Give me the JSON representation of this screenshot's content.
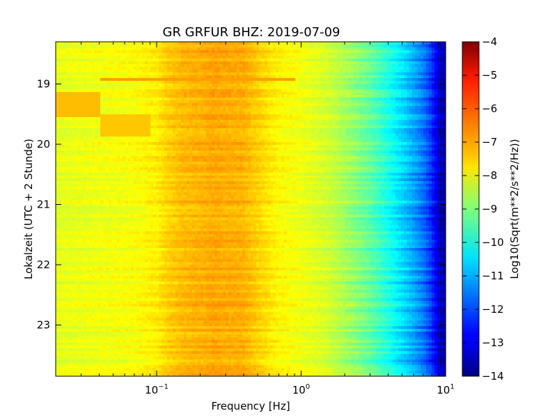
{
  "chart_data": {
    "type": "heatmap",
    "title": "GR GRFUR BHZ: 2019-07-09",
    "xlabel": "Frequency [Hz]",
    "ylabel": "Lokalzeit (UTC + 2 Stunde)",
    "x_scale": "log",
    "xlim": [
      0.02,
      10
    ],
    "ylim": [
      18.3,
      23.85
    ],
    "y_inverted": true,
    "x_ticks": [
      {
        "value": 0.1,
        "base": "10",
        "exp": "−1"
      },
      {
        "value": 1,
        "base": "10",
        "exp": "0"
      },
      {
        "value": 10,
        "base": "10",
        "exp": "1"
      }
    ],
    "y_ticks": [
      {
        "value": 19,
        "label": "19"
      },
      {
        "value": 20,
        "label": "20"
      },
      {
        "value": 21,
        "label": "21"
      },
      {
        "value": 22,
        "label": "22"
      },
      {
        "value": 23,
        "label": "23"
      }
    ],
    "colorbar": {
      "label": "Log10(Sqrt(m**2/s**2/Hz))",
      "min": -14,
      "max": -4,
      "colormap": "jet",
      "ticks": [
        {
          "value": -4,
          "label": "−4"
        },
        {
          "value": -5,
          "label": "−5"
        },
        {
          "value": -6,
          "label": "−6"
        },
        {
          "value": -7,
          "label": "−7"
        },
        {
          "value": -8,
          "label": "−8"
        },
        {
          "value": -9,
          "label": "−9"
        },
        {
          "value": -10,
          "label": "−10"
        },
        {
          "value": -11,
          "label": "−11"
        },
        {
          "value": -12,
          "label": "−12"
        },
        {
          "value": -13,
          "label": "−13"
        },
        {
          "value": -14,
          "label": "−14"
        }
      ]
    },
    "spectrum_profile": {
      "frequency_hz": [
        0.02,
        0.04,
        0.07,
        0.1,
        0.12,
        0.15,
        0.2,
        0.25,
        0.3,
        0.4,
        0.5,
        0.7,
        1.0,
        1.5,
        2.0,
        3.0,
        4.0,
        5.0,
        6.0,
        7.0,
        8.0,
        9.0,
        10.0
      ],
      "value": [
        -8.0,
        -7.9,
        -7.8,
        -7.6,
        -7.3,
        -7.1,
        -7.0,
        -6.9,
        -6.95,
        -7.0,
        -7.3,
        -7.7,
        -7.9,
        -8.2,
        -8.6,
        -9.3,
        -10.0,
        -10.6,
        -11.1,
        -11.6,
        -12.3,
        -13.3,
        -13.8
      ]
    },
    "events": [
      {
        "t_start": 18.9,
        "t_end": 18.95,
        "f_min": 0.04,
        "f_max": 0.9,
        "value": -6.8
      },
      {
        "t_start": 19.15,
        "t_end": 19.55,
        "f_min": 0.02,
        "f_max": 0.04,
        "value": -7.1
      },
      {
        "t_start": 19.5,
        "t_end": 19.85,
        "f_min": 0.04,
        "f_max": 0.09,
        "value": -7.2
      }
    ]
  }
}
